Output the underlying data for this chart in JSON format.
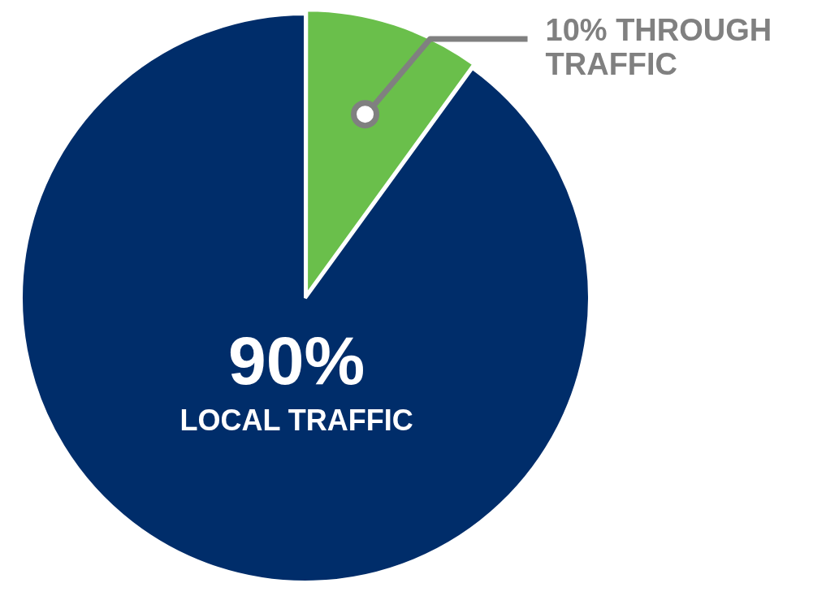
{
  "chart_data": {
    "type": "pie",
    "categories": [
      "THROUGH TRAFFIC",
      "LOCAL TRAFFIC"
    ],
    "values": [
      10,
      90
    ],
    "colors": [
      "#6abf4b",
      "#002d6a"
    ],
    "value_labels": [
      "10%",
      "90%"
    ],
    "legend": false
  }
}
